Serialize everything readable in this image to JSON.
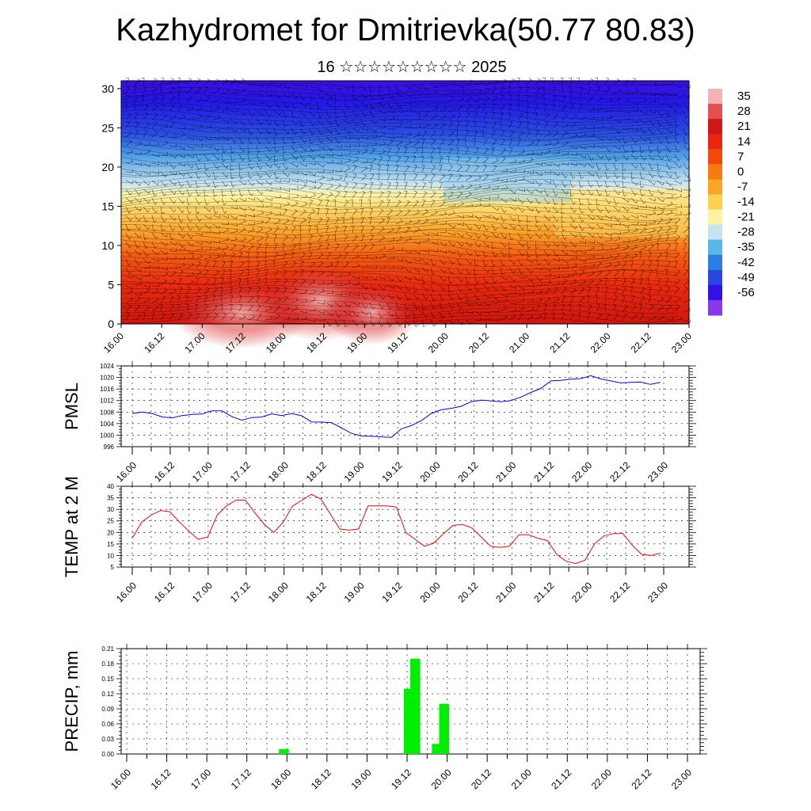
{
  "page": {
    "title": "Kazhydromet for Dmitrievka(50.77 80.83)",
    "subtitle": "16 ☆☆☆☆☆☆☆☆☆ 2025"
  },
  "colors": {
    "pmsl_line": "#0000ff",
    "temp_line": "#ff0000",
    "precip_bar": "#00ee00"
  },
  "chart_data": [
    {
      "type": "heatmap",
      "name": "Vertical cross-section (temperature with wind barbs)",
      "title": "Kazhydromet for Dmitrievka(50.77 80.83)",
      "x_tick_labels": [
        "16.00",
        "16.12",
        "17.00",
        "17.12",
        "18.00",
        "18.12",
        "19.00",
        "19.12",
        "20.00",
        "20.12",
        "21.00",
        "21.12",
        "22.00",
        "22.12",
        "23.00"
      ],
      "y_ticks": [
        0,
        5,
        10,
        15,
        20,
        25,
        30
      ],
      "ylim": [
        0,
        31
      ],
      "colorbar_labels": [
        "35",
        "28",
        "21",
        "14",
        "7",
        "0",
        "-7",
        "-14",
        "-21",
        "-28",
        "-35",
        "-42",
        "-49",
        "-56"
      ],
      "colorbar_colors": [
        "#f3b3b3",
        "#e45050",
        "#d01818",
        "#ea2410",
        "#f24a0c",
        "#f67a10",
        "#fba520",
        "#fed050",
        "#fdf2a0",
        "#c6e3ef",
        "#58b6e8",
        "#2c7ee4",
        "#2a46e0",
        "#3210e8",
        "#8a38e8"
      ]
    },
    {
      "type": "line",
      "ylabel": "PMSL",
      "x_tick_labels": [
        "16.00",
        "16.12",
        "17.00",
        "17.12",
        "18.00",
        "18.12",
        "19.00",
        "19.12",
        "20.00",
        "20.12",
        "21.00",
        "21.12",
        "22.00",
        "22.12",
        "23.00"
      ],
      "ylim": [
        996,
        1024
      ],
      "y_ticks": [
        996,
        1000,
        1004,
        1008,
        1012,
        1016,
        1020,
        1024
      ],
      "series": [
        {
          "values": [
            1007.5,
            1008,
            1007.5,
            1006.3,
            1006,
            1006.8,
            1007.2,
            1007.3,
            1008.4,
            1008.4,
            1006.4,
            1005.2,
            1006.1,
            1006.3,
            1007.4,
            1006.8,
            1007.5,
            1006.7,
            1004.6,
            1004.5,
            1004.3,
            1002.5,
            1000.6,
            999.7,
            999.6,
            999.4,
            999.2,
            1002.2,
            1003.3,
            1005,
            1007.5,
            1008.8,
            1009.3,
            1010,
            1011.6,
            1012.1,
            1011.9,
            1011.6,
            1012,
            1013.2,
            1014.8,
            1016.2,
            1018.8,
            1019,
            1019.4,
            1019.6,
            1020.6,
            1019.5,
            1018.8,
            1018.1,
            1018.3,
            1018.4,
            1017.6,
            1018.3
          ]
        }
      ]
    },
    {
      "type": "line",
      "ylabel": "TEMP at 2 M",
      "x_tick_labels": [
        "16.00",
        "16.12",
        "17.00",
        "17.12",
        "18.00",
        "18.12",
        "19.00",
        "19.12",
        "20.00",
        "20.12",
        "21.00",
        "21.12",
        "22.00",
        "22.12",
        "23.00"
      ],
      "ylim": [
        5,
        40
      ],
      "y_ticks": [
        5,
        10,
        15,
        20,
        25,
        30,
        35,
        40
      ],
      "series": [
        {
          "values": [
            17.5,
            24.5,
            27.5,
            29.5,
            29,
            24.5,
            20.5,
            17,
            18,
            27.5,
            31.5,
            34,
            34,
            28.5,
            23.5,
            20,
            24.5,
            31.5,
            34,
            36.5,
            34.5,
            28,
            21.5,
            21,
            21.5,
            31.5,
            31.5,
            31.5,
            31,
            20,
            17,
            14,
            15.5,
            19.5,
            23,
            23.5,
            22,
            18,
            14,
            13.5,
            14,
            19,
            19,
            17.5,
            16.5,
            10.5,
            7.5,
            6.5,
            8,
            15,
            18.5,
            19.5,
            19.5,
            14.5,
            10.5,
            10,
            11
          ]
        }
      ]
    },
    {
      "type": "bar",
      "ylabel": "PRECIP, mm",
      "x_tick_labels": [
        "16.00",
        "16.12",
        "17.00",
        "17.12",
        "18.00",
        "18.12",
        "19.00",
        "19.12",
        "20.00",
        "20.12",
        "21.00",
        "21.12",
        "22.00",
        "22.12",
        "23.00"
      ],
      "ylim": [
        0,
        0.21
      ],
      "y_tick_labels": [
        "0.00",
        "0.03",
        "0.06",
        "0.09",
        "0.12",
        "0.15",
        "0.18",
        "0.21"
      ],
      "y_ticks": [
        0,
        0.03,
        0.06,
        0.09,
        0.12,
        0.15,
        0.18,
        0.21
      ],
      "bars": [
        {
          "day": 1.96,
          "value": 0.01
        },
        {
          "day": 3.52,
          "value": 0.13
        },
        {
          "day": 3.6,
          "value": 0.19
        },
        {
          "day": 3.87,
          "value": 0.02
        },
        {
          "day": 3.96,
          "value": 0.1
        }
      ]
    }
  ]
}
